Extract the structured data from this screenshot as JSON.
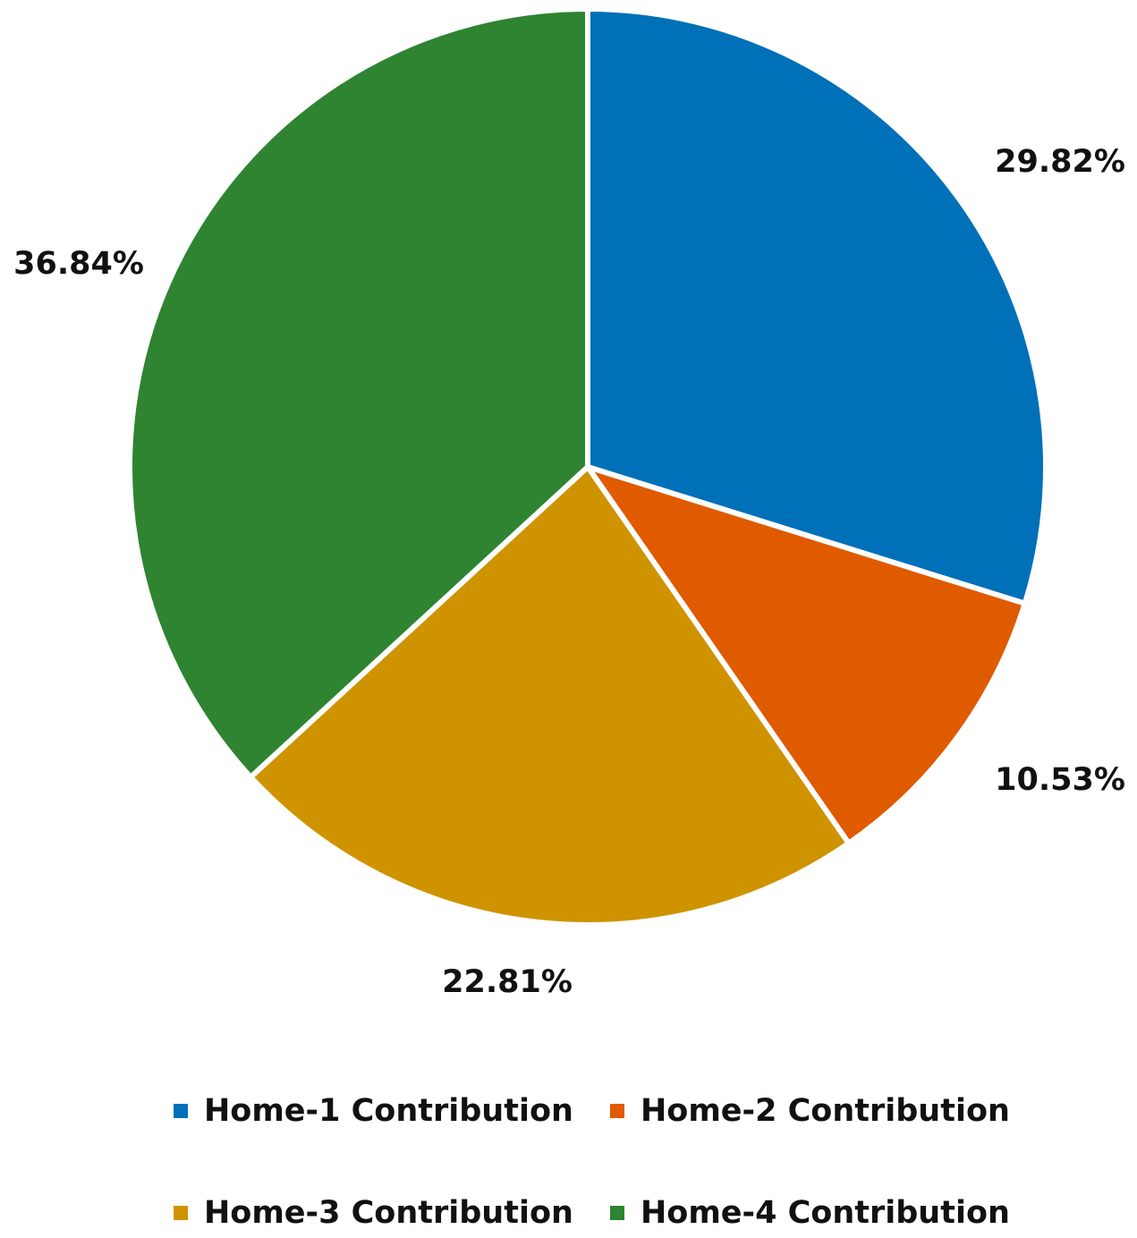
{
  "chart_data": {
    "type": "pie",
    "categories": [
      "Home-1 Contribution",
      "Home-2 Contribution",
      "Home-3 Contribution",
      "Home-4 Contribution"
    ],
    "values": [
      29.82,
      10.53,
      22.81,
      36.84
    ],
    "data_labels": [
      "29.82%",
      "10.53%",
      "22.81%",
      "36.84%"
    ],
    "colors": [
      "#0070b8",
      "#e05a00",
      "#cf9300",
      "#2e8430"
    ],
    "start_angle": "12 o'clock",
    "direction": "clockwise",
    "legend_position": "bottom"
  }
}
